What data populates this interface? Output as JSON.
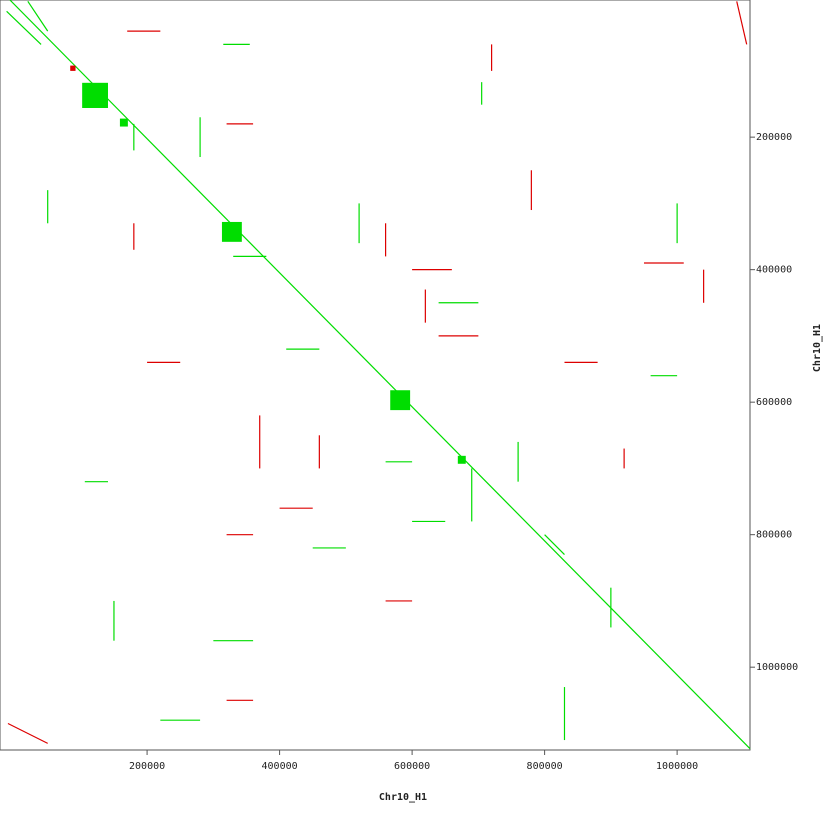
{
  "chart_data": {
    "type": "dotplot",
    "x_label": "Chr10_H1",
    "y_label": "Chr10_H1",
    "xlim": [
      -22000,
      1110000
    ],
    "ylim": [
      -7000,
      1125000
    ],
    "xticks": [
      200000,
      400000,
      600000,
      800000,
      1000000
    ],
    "yticks": [
      200000,
      400000,
      600000,
      800000,
      1000000
    ],
    "series": [
      {
        "color": "#00dd00",
        "segments": [
          [
            -7000,
            -7000,
            1110000,
            1123000
          ],
          [
            705000,
            117000,
            705000,
            151000
          ],
          [
            106000,
            720000,
            141000,
            720000
          ],
          [
            -12000,
            10000,
            40000,
            60000
          ],
          [
            20000,
            -5000,
            50000,
            40000
          ],
          [
            315000,
            60000,
            355000,
            60000
          ],
          [
            330000,
            380000,
            380000,
            380000
          ],
          [
            280000,
            170000,
            280000,
            230000
          ],
          [
            180000,
            180000,
            180000,
            220000
          ],
          [
            520000,
            300000,
            520000,
            360000
          ],
          [
            640000,
            450000,
            700000,
            450000
          ],
          [
            600000,
            780000,
            650000,
            780000
          ],
          [
            800000,
            800000,
            830000,
            830000
          ],
          [
            830000,
            1030000,
            830000,
            1110000
          ],
          [
            220000,
            1080000,
            280000,
            1080000
          ],
          [
            690000,
            700000,
            690000,
            780000
          ],
          [
            50000,
            280000,
            50000,
            330000
          ],
          [
            410000,
            520000,
            460000,
            520000
          ],
          [
            960000,
            560000,
            1000000,
            560000
          ],
          [
            1000000,
            300000,
            1000000,
            360000
          ],
          [
            150000,
            900000,
            150000,
            960000
          ],
          [
            300000,
            960000,
            360000,
            960000
          ],
          [
            760000,
            660000,
            760000,
            720000
          ],
          [
            560000,
            690000,
            600000,
            690000
          ],
          [
            900000,
            880000,
            900000,
            940000
          ],
          [
            450000,
            820000,
            500000,
            820000
          ]
        ],
        "blocks": [
          [
            102000,
            118000,
            141000,
            156000
          ],
          [
            313000,
            328000,
            343000,
            358000
          ],
          [
            567000,
            582000,
            597000,
            612000
          ],
          [
            159000,
            172000,
            171000,
            184000
          ],
          [
            669000,
            681000,
            681000,
            693000
          ]
        ]
      },
      {
        "color": "#dd0000",
        "segments": [
          [
            1090000,
            -5000,
            1105000,
            60000
          ],
          [
            -10000,
            1085000,
            50000,
            1115000
          ],
          [
            320000,
            180000,
            360000,
            180000
          ],
          [
            640000,
            500000,
            700000,
            500000
          ],
          [
            560000,
            330000,
            560000,
            380000
          ],
          [
            600000,
            400000,
            660000,
            400000
          ],
          [
            780000,
            250000,
            780000,
            310000
          ],
          [
            950000,
            390000,
            1010000,
            390000
          ],
          [
            370000,
            620000,
            370000,
            700000
          ],
          [
            400000,
            760000,
            450000,
            760000
          ],
          [
            320000,
            800000,
            360000,
            800000
          ],
          [
            920000,
            670000,
            920000,
            700000
          ],
          [
            620000,
            430000,
            620000,
            480000
          ],
          [
            830000,
            540000,
            880000,
            540000
          ],
          [
            180000,
            330000,
            180000,
            370000
          ],
          [
            200000,
            540000,
            250000,
            540000
          ],
          [
            320000,
            1050000,
            360000,
            1050000
          ],
          [
            720000,
            60000,
            720000,
            100000
          ],
          [
            170000,
            40000,
            220000,
            40000
          ],
          [
            460000,
            650000,
            460000,
            700000
          ],
          [
            1040000,
            400000,
            1040000,
            450000
          ],
          [
            560000,
            900000,
            600000,
            900000
          ]
        ],
        "blocks": [
          [
            84000,
            92000,
            92000,
            100000
          ]
        ]
      }
    ]
  }
}
